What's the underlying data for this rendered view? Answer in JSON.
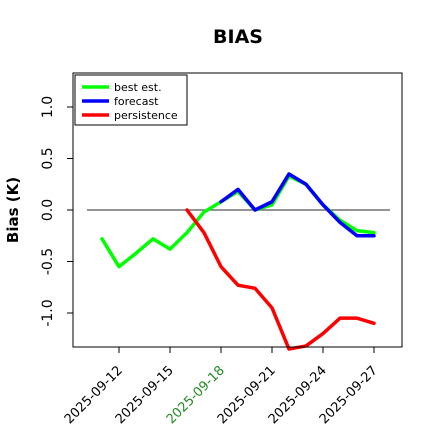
{
  "chart_data": {
    "type": "line",
    "title": "BIAS",
    "xlabel": "",
    "ylabel": "Bias (K)",
    "ylim": [
      -1.3,
      1.3
    ],
    "y_ticks": [
      -1.0,
      -0.5,
      0.0,
      0.5,
      1.0
    ],
    "y_tick_labels": [
      "-1.0",
      "-0.5",
      "0.0",
      "0.5",
      "1.0"
    ],
    "x_ticks": [
      "2025-09-12",
      "2025-09-15",
      "2025-09-18",
      "2025-09-21",
      "2025-09-24",
      "2025-09-27"
    ],
    "highlight_tick": "2025-09-18",
    "highlight_color": "#228B22",
    "zero_line": 0,
    "legend_position": "top-left",
    "series": [
      {
        "name": "best est.",
        "color": "#00ff00",
        "x": [
          "2025-09-11",
          "2025-09-12",
          "2025-09-13",
          "2025-09-14",
          "2025-09-15",
          "2025-09-16",
          "2025-09-17",
          "2025-09-18",
          "2025-09-19",
          "2025-09-20",
          "2025-09-21",
          "2025-09-22",
          "2025-09-23",
          "2025-09-24",
          "2025-09-25",
          "2025-09-26",
          "2025-09-27"
        ],
        "values": [
          -0.28,
          -0.55,
          -0.42,
          -0.28,
          -0.38,
          -0.22,
          -0.02,
          0.08,
          0.18,
          0.0,
          0.05,
          0.33,
          0.25,
          0.05,
          -0.1,
          -0.2,
          -0.22
        ]
      },
      {
        "name": "forecast",
        "color": "#0000ff",
        "x": [
          "2025-09-18",
          "2025-09-19",
          "2025-09-20",
          "2025-09-21",
          "2025-09-22",
          "2025-09-23",
          "2025-09-24",
          "2025-09-25",
          "2025-09-26",
          "2025-09-27"
        ],
        "values": [
          0.08,
          0.2,
          0.0,
          0.08,
          0.35,
          0.25,
          0.05,
          -0.12,
          -0.25,
          -0.25
        ]
      },
      {
        "name": "persistence",
        "color": "#ff0000",
        "x": [
          "2025-09-16",
          "2025-09-17",
          "2025-09-18",
          "2025-09-19",
          "2025-09-20",
          "2025-09-21",
          "2025-09-22",
          "2025-09-23",
          "2025-09-24",
          "2025-09-25",
          "2025-09-26",
          "2025-09-27"
        ],
        "values": [
          0.0,
          -0.22,
          -0.55,
          -0.73,
          -0.76,
          -0.95,
          -1.35,
          -1.32,
          -1.2,
          -1.05,
          -1.05,
          -1.1
        ]
      }
    ]
  }
}
